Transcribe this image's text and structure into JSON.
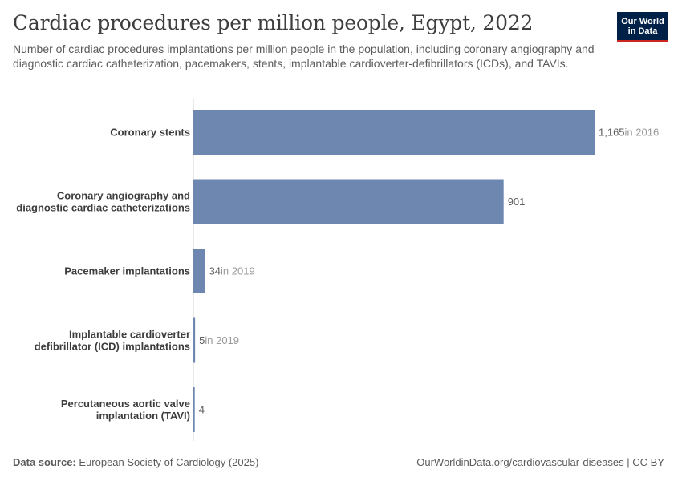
{
  "header": {
    "title": "Cardiac procedures per million people, Egypt, 2022",
    "subtitle": "Number of cardiac procedures implantations per million people in the population, including coronary angiography and diagnostic cardiac catheterization, pacemakers, stents, implantable cardioverter-defibrillators (ICDs), and TAVIs.",
    "logo_line1": "Our World",
    "logo_line2": "in Data"
  },
  "footer": {
    "source_label": "Data source:",
    "source_text": "European Society of Cardiology (2025)",
    "link": "OurWorldinData.org/cardiovascular-diseases | CC BY"
  },
  "colors": {
    "bar": "#6d87b0",
    "axis": "#d6d6d6",
    "label": "#3d3d3d",
    "value": "#5b5b5b",
    "year_note": "#9a9a9a",
    "logo_bg": "#002147",
    "logo_accent": "#ce261e"
  },
  "chart_data": {
    "type": "bar",
    "orientation": "horizontal",
    "categories": [
      "Coronary stents",
      "Coronary angiography and diagnostic cardiac catheterizations",
      "Pacemaker implantations",
      "Implantable cardioverter defibrillator (ICD) implantations",
      "Percutaneous aortic valve implantation (TAVI)"
    ],
    "category_lines": [
      [
        "Coronary stents"
      ],
      [
        "Coronary angiography and",
        "diagnostic cardiac catheterizations"
      ],
      [
        "Pacemaker implantations"
      ],
      [
        "Implantable cardioverter",
        "defibrillator (ICD) implantations"
      ],
      [
        "Percutaneous aortic valve",
        "implantation (TAVI)"
      ]
    ],
    "values": [
      1165,
      901,
      34,
      5,
      4
    ],
    "value_labels": [
      "1,165",
      "901",
      "34",
      "5",
      "4"
    ],
    "year_notes": [
      "in 2016",
      "",
      "in 2019",
      "in 2019",
      ""
    ],
    "xlim": [
      0,
      1165
    ]
  }
}
